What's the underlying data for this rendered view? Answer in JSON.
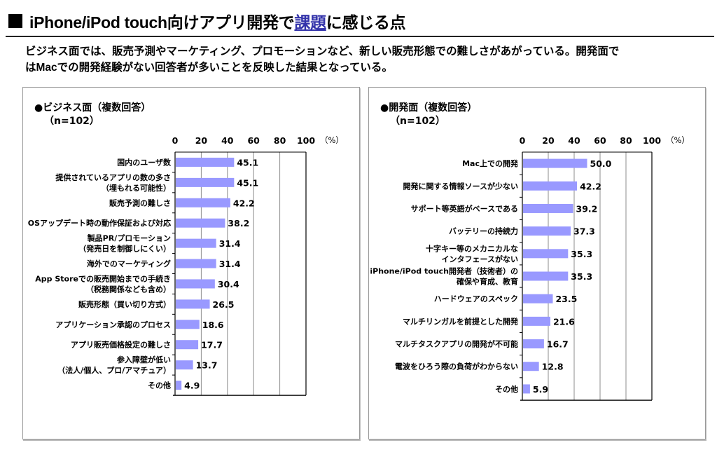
{
  "page": {
    "title_prefix": "iPhone/iPod touch向けアプリ開発で",
    "title_highlight": "課題",
    "title_suffix": "に感じる点",
    "summary_line1": "ビジネス面では、販売予測やマーケティング、プロモーションなど、新しい販売形態での難しさがあがっている。開発面で",
    "summary_line2": "はMacでの開発経験がない回答者が多いことを反映した結果となっている。",
    "accent_color": "#3333aa",
    "bar_color": "#9999ff"
  },
  "chart_data": [
    {
      "type": "bar",
      "orientation": "horizontal",
      "title": "●ビジネス面（複数回答）",
      "subtitle": "（n=102）",
      "xlabel": "",
      "unit_label": "（%）",
      "xlim": [
        0,
        100
      ],
      "xticks": [
        0,
        20,
        40,
        60,
        80,
        100
      ],
      "grid": true,
      "categories": [
        [
          "国内のユーザ数"
        ],
        [
          "提供されているアプリの数の多さ",
          "（埋もれる可能性）"
        ],
        [
          "販売予測の難しさ"
        ],
        [
          "OSアップデート時の動作保証および対応"
        ],
        [
          "製品PR/プロモーション",
          "（発売日を制御しにくい）"
        ],
        [
          "海外でのマーケティング"
        ],
        [
          "App Storeでの販売開始までの手続き",
          "（税務関係なども含め）"
        ],
        [
          "販売形態（買い切り方式）"
        ],
        [
          "アプリケーション承認のプロセス"
        ],
        [
          "アプリ販売価格設定の難しさ"
        ],
        [
          "参入障壁が低い",
          "（法人/個人、プロ/アマチュア）"
        ],
        [
          "その他"
        ]
      ],
      "values": [
        45.1,
        45.1,
        42.2,
        38.2,
        31.4,
        31.4,
        30.4,
        26.5,
        18.6,
        17.7,
        13.7,
        4.9
      ],
      "value_labels": [
        "45.1",
        "45.1",
        "42.2",
        "38.2",
        "31.4",
        "31.4",
        "30.4",
        "26.5",
        "18.6",
        "17.7",
        "13.7",
        "4.9"
      ]
    },
    {
      "type": "bar",
      "orientation": "horizontal",
      "title": "●開発面（複数回答）",
      "subtitle": "（n=102）",
      "xlabel": "",
      "unit_label": "（%）",
      "xlim": [
        0,
        100
      ],
      "xticks": [
        0,
        20,
        40,
        60,
        80,
        100
      ],
      "grid": true,
      "categories": [
        [
          "Mac上での開発"
        ],
        [
          "開発に関する情報ソースが少ない"
        ],
        [
          "サポート等英語がベースである"
        ],
        [
          "バッテリーの持続力"
        ],
        [
          "十字キー等のメカニカルな",
          "インタフェースがない"
        ],
        [
          "iPhone/iPod touch開発者（技術者）の",
          "確保や育成、教育"
        ],
        [
          "ハードウェアのスペック"
        ],
        [
          "マルチリンガルを前提とした開発"
        ],
        [
          "マルチタスクアプリの開発が不可能"
        ],
        [
          "電波をひろう際の負荷がわからない"
        ],
        [
          "その他"
        ]
      ],
      "values": [
        50.0,
        42.2,
        39.2,
        37.3,
        35.3,
        35.3,
        23.5,
        21.6,
        16.7,
        12.8,
        5.9
      ],
      "value_labels": [
        "50.0",
        "42.2",
        "39.2",
        "37.3",
        "35.3",
        "35.3",
        "23.5",
        "21.6",
        "16.7",
        "12.8",
        "5.9"
      ]
    }
  ]
}
